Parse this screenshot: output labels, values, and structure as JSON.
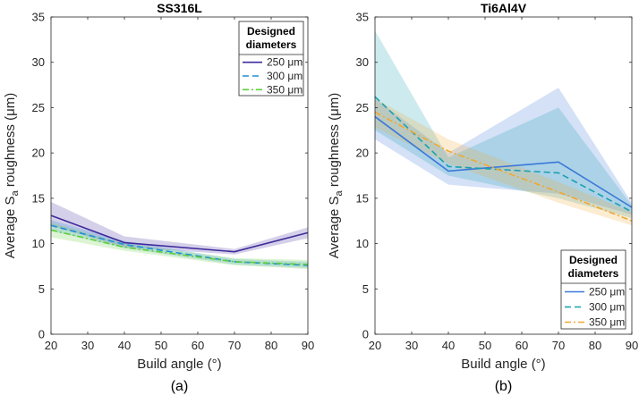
{
  "chart_data": [
    {
      "type": "line",
      "panel": "(a)",
      "title": "SS316L",
      "xlabel": "Build angle (°)",
      "ylabel_main": "Average S",
      "ylabel_sub": "a",
      "ylabel_rest": " roughness (μm)",
      "xlim": [
        20,
        90
      ],
      "ylim": [
        0,
        35
      ],
      "xticks": [
        20,
        30,
        40,
        50,
        60,
        70,
        80,
        90
      ],
      "yticks": [
        0,
        5,
        10,
        15,
        20,
        25,
        30,
        35
      ],
      "legend": {
        "title_line1": "Designed",
        "title_line2": "diameters",
        "placement": "top-right"
      },
      "x": [
        20,
        40,
        70,
        90
      ],
      "series": [
        {
          "name": "250 μm",
          "color": "#3f2a9c",
          "dash": "solid",
          "values": [
            13.1,
            10.1,
            9.1,
            11.2
          ],
          "upper": [
            14.6,
            10.8,
            9.4,
            11.8
          ],
          "lower": [
            12.0,
            9.6,
            8.8,
            10.6
          ]
        },
        {
          "name": "300 μm",
          "color": "#1f8fd6",
          "dash": "dashed",
          "values": [
            12.0,
            9.9,
            8.0,
            7.6
          ],
          "upper": [
            12.6,
            10.3,
            8.3,
            8.0
          ],
          "lower": [
            11.4,
            9.5,
            7.7,
            7.3
          ]
        },
        {
          "name": "350 μm",
          "color": "#5fcf3a",
          "dash": "dashdot",
          "values": [
            11.5,
            9.6,
            8.0,
            7.7
          ],
          "upper": [
            12.3,
            10.0,
            8.4,
            8.2
          ],
          "lower": [
            10.7,
            9.2,
            7.6,
            7.2
          ]
        }
      ]
    },
    {
      "type": "line",
      "panel": "(b)",
      "title": "Ti6Al4V",
      "xlabel": "Build angle (°)",
      "ylabel_main": "Average S",
      "ylabel_sub": "a",
      "ylabel_rest": " roughness (μm)",
      "xlim": [
        20,
        90
      ],
      "ylim": [
        0,
        35
      ],
      "xticks": [
        20,
        30,
        40,
        50,
        60,
        70,
        80,
        90
      ],
      "yticks": [
        0,
        5,
        10,
        15,
        20,
        25,
        30,
        35
      ],
      "legend": {
        "title_line1": "Designed",
        "title_line2": "diameters",
        "placement": "bottom-right"
      },
      "x": [
        20,
        40,
        70,
        90
      ],
      "series": [
        {
          "name": "250 μm",
          "color": "#3b78d8",
          "dash": "solid",
          "values": [
            24.0,
            18.0,
            19.0,
            14.0
          ],
          "upper": [
            26.0,
            20.0,
            27.2,
            14.5
          ],
          "lower": [
            21.5,
            16.5,
            15.5,
            13.2
          ]
        },
        {
          "name": "300 μm",
          "color": "#1aa0b0",
          "dash": "dashed",
          "values": [
            26.2,
            18.5,
            17.8,
            13.5
          ],
          "upper": [
            33.5,
            19.5,
            25.0,
            14.2
          ],
          "lower": [
            22.5,
            17.5,
            15.0,
            12.8
          ]
        },
        {
          "name": "350 μm",
          "color": "#f0a830",
          "dash": "dashdot",
          "values": [
            24.5,
            20.2,
            15.7,
            12.5
          ],
          "upper": [
            26.0,
            21.5,
            16.8,
            13.5
          ],
          "lower": [
            22.8,
            18.8,
            14.5,
            12.0
          ]
        }
      ]
    }
  ]
}
